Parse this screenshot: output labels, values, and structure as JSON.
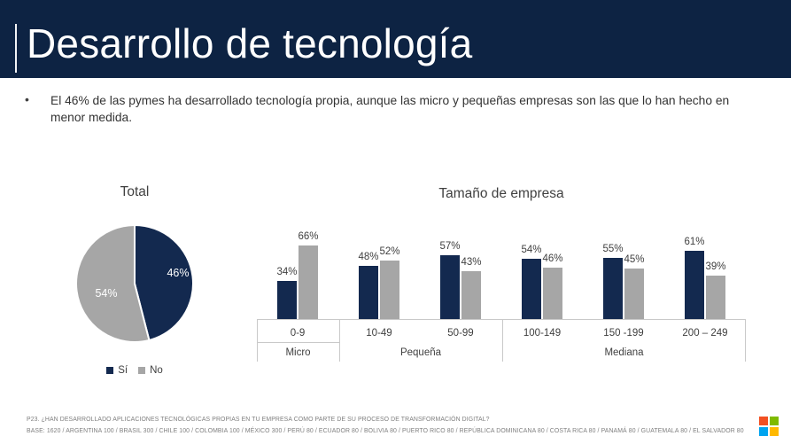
{
  "slide": {
    "title": "Desarrollo de tecnología",
    "bullet_text": "El 46% de las pymes ha desarrollado tecnología propia, aunque las micro y pequeñas empresas son las que lo han hecho en menor medida.",
    "footnote_line1": "P23. ¿HAN DESARROLLADO APLICACIONES TECNOLÓGICAS PROPIAS EN TU EMPRESA COMO PARTE DE SU PROCESO DE TRANSFORMACIÓN DIGITAL?",
    "footnote_line2": "BASE: 1620 / ARGENTINA 100 / BRASIL 300 / CHILE 100 / COLOMBIA 100 / MÉXICO 300 / PERÚ 80 / ECUADOR 80 / BOLIVIA 80 / PUERTO RICO 80 / REPÚBLICA DOMINICANA 80 / COSTA RICA 80 / PANAMÁ 80 / GUATEMALA 80 / EL SALVADOR 80"
  },
  "colors": {
    "banner_navy": "#0d2343",
    "series_navy": "#13294f",
    "series_gray": "#a6a6a6",
    "text_dark": "#404040",
    "axis_line": "#c9c9c9"
  },
  "chart_data": [
    {
      "type": "pie",
      "title": "Total",
      "labels": [
        "Sí",
        "No"
      ],
      "values": [
        46,
        54
      ],
      "data_labels": [
        "46%",
        "54%"
      ],
      "colors": [
        "#13294f",
        "#a6a6a6"
      ],
      "legend_position": "bottom",
      "start_angle_top": true,
      "direction": "clockwise"
    },
    {
      "type": "bar",
      "title": "Tamaño de empresa",
      "categories": [
        "0-9",
        "10-49",
        "50-99",
        "100-149",
        "150 -199",
        "200 – 249"
      ],
      "group_labels": [
        {
          "label": "Micro",
          "span": 1
        },
        {
          "label": "Pequeña",
          "span": 2
        },
        {
          "label": "Mediana",
          "span": 3
        }
      ],
      "series": [
        {
          "name": "Sí",
          "color": "#13294f",
          "values": [
            34,
            48,
            57,
            54,
            55,
            61
          ]
        },
        {
          "name": "No",
          "color": "#a6a6a6",
          "values": [
            66,
            52,
            43,
            46,
            45,
            39
          ]
        }
      ],
      "unit": "%",
      "ylim": [
        0,
        100
      ],
      "grid": false,
      "value_axis_visible": false,
      "legend": "shared-with-pie"
    }
  ],
  "logo": {
    "name": "microsoft-logo",
    "colors": [
      "#f25022",
      "#7fba00",
      "#00a4ef",
      "#ffb900"
    ]
  }
}
